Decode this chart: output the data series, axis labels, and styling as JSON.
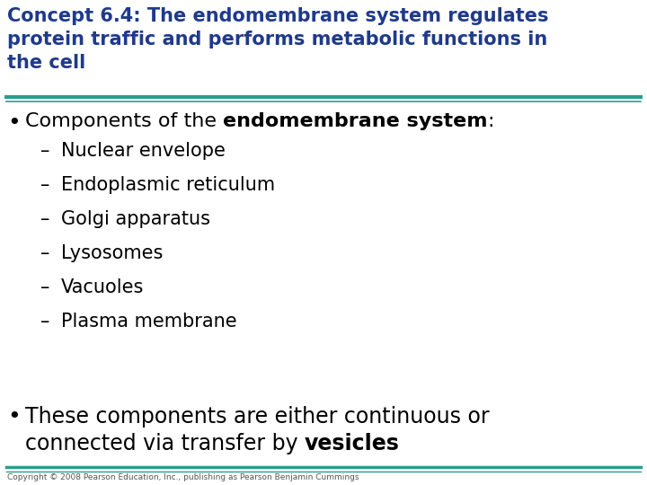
{
  "title_lines": [
    "Concept 6.4: The endomembrane system regulates",
    "protein traffic and performs metabolic functions in",
    "the cell"
  ],
  "title_color": "#1F3A8A",
  "bg_color": "#FFFFFF",
  "line_color_thick": "#2A9D8F",
  "line_color_thin": "#2A9D8F",
  "sub_items": [
    "Nuclear envelope",
    "Endoplasmic reticulum",
    "Golgi apparatus",
    "Lysosomes",
    "Vacuoles",
    "Plasma membrane"
  ],
  "copyright": "Copyright © 2008 Pearson Education, Inc., publishing as Pearson Benjamin Cummings",
  "dash": "–"
}
